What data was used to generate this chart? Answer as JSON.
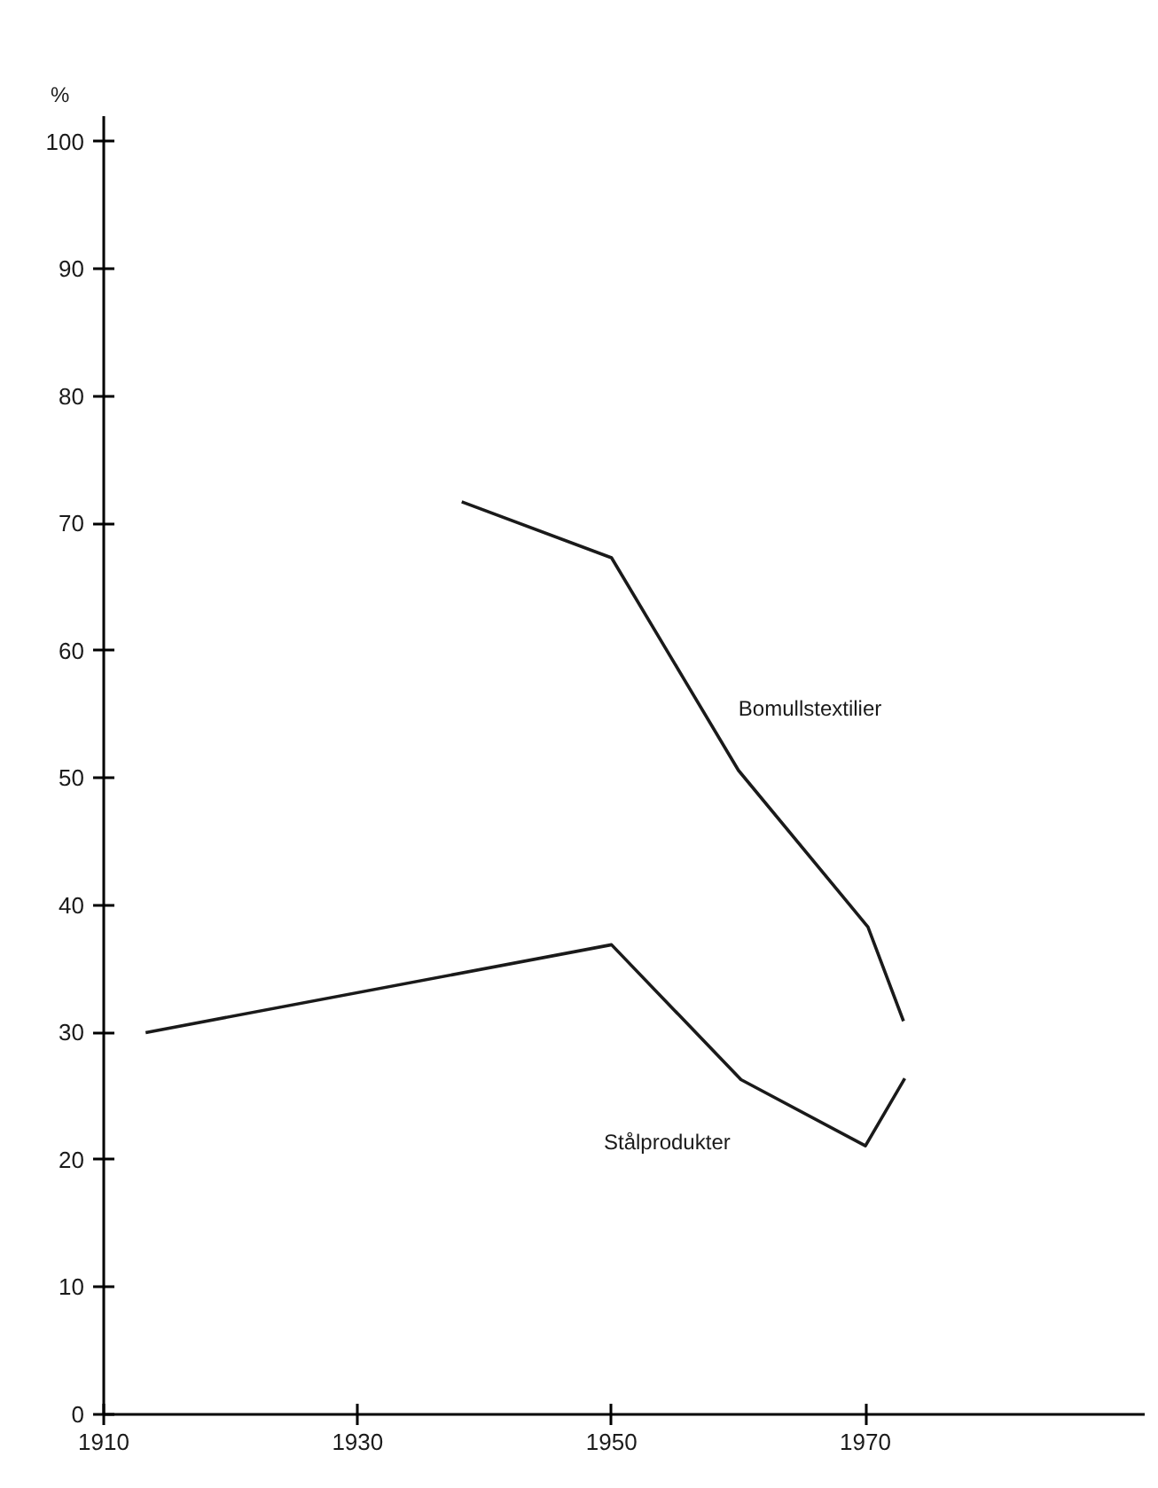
{
  "chart_data": {
    "type": "line",
    "ylabel": "%",
    "xlim": [
      1910,
      1992
    ],
    "ylim": [
      0,
      102
    ],
    "xticks": [
      1910,
      1930,
      1950,
      1970
    ],
    "yticks": [
      0,
      10,
      20,
      30,
      40,
      50,
      60,
      70,
      80,
      90,
      100
    ],
    "grid": false,
    "legend": false,
    "marker": "none",
    "line_style": "solid",
    "series": [
      {
        "name": "Bomullstextilier",
        "color": "#1a1a1a",
        "x": [
          1938.2,
          1950,
          1960,
          1970.2,
          1973
        ],
        "values": [
          71.7,
          67.3,
          50.6,
          38.3,
          30.9
        ]
      },
      {
        "name": "Stålprodukter",
        "color": "#1a1a1a",
        "x": [
          1913.3,
          1950,
          1960.2,
          1970,
          1973.1
        ],
        "values": [
          30,
          36.9,
          26.3,
          21.1,
          26.4
        ]
      }
    ]
  }
}
